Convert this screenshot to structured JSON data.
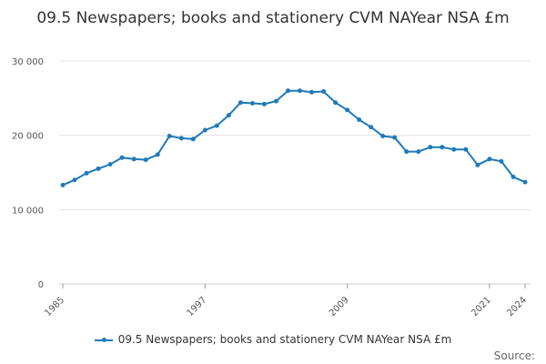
{
  "chart_data": {
    "type": "line",
    "title": "09.5 Newspapers; books and stationery CVM NAYear NSA £m",
    "xlabel": "",
    "ylabel": "",
    "x": [
      1985,
      1986,
      1987,
      1988,
      1989,
      1990,
      1991,
      1992,
      1993,
      1994,
      1995,
      1996,
      1997,
      1998,
      1999,
      2000,
      2001,
      2002,
      2003,
      2004,
      2005,
      2006,
      2007,
      2008,
      2009,
      2010,
      2011,
      2012,
      2013,
      2014,
      2015,
      2016,
      2017,
      2018,
      2019,
      2020,
      2021,
      2022,
      2023,
      2024
    ],
    "series": [
      {
        "name": "09.5 Newspapers; books and stationery CVM NAYear NSA £m",
        "values": [
          13300,
          14000,
          14900,
          15500,
          16100,
          17000,
          16800,
          16700,
          17400,
          19900,
          19600,
          19500,
          20700,
          21300,
          22700,
          24400,
          24300,
          24200,
          24600,
          26000,
          26000,
          25800,
          25900,
          24400,
          23400,
          22100,
          21100,
          19900,
          19700,
          17800,
          17800,
          18400,
          18400,
          18100,
          18100,
          16000,
          16800,
          16500,
          14400,
          13700
        ]
      }
    ],
    "ylim": [
      0,
      30000
    ],
    "yticks": [
      0,
      10000,
      20000,
      30000
    ],
    "ytick_labels": [
      "0",
      "10 000",
      "20 000",
      "30 000"
    ],
    "xticks": [
      1985,
      1997,
      2009,
      2021,
      2024
    ],
    "grid": true,
    "legend_position": "bottom",
    "colors": {
      "line": "#1f7ab8",
      "grid": "#e3e3e3"
    }
  },
  "footer": {
    "source_label": "Source:"
  }
}
